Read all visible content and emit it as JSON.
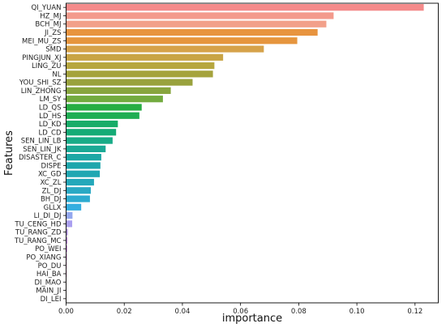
{
  "chart_data": {
    "type": "bar",
    "orientation": "horizontal",
    "xlabel": "importance",
    "ylabel": "Features",
    "xlim": [
      0,
      0.128
    ],
    "xticks": [
      "0.00",
      "0.02",
      "0.04",
      "0.06",
      "0.08",
      "0.10",
      "0.12"
    ],
    "grid": false,
    "categories": [
      "QI_YUAN",
      "HZ_MJ",
      "BCH_MJ",
      "JI_ZS",
      "MEI_MU_ZS",
      "SMD",
      "PINGJUN_XJ",
      "LING_ZU",
      "NL",
      "YOU_SHI_SZ",
      "LIN_ZHONG",
      "LM_SY",
      "LD_QS",
      "LD_HS",
      "LD_KD",
      "LD_CD",
      "SEN_LIN_LB",
      "SEN_LIN_JK",
      "DISASTER_C",
      "DISPE",
      "XC_GD",
      "XC_ZL",
      "ZL_DJ",
      "BH_DJ",
      "GLLX",
      "LI_DI_DJ",
      "TU_CENG_HD",
      "TU_RANG_ZD",
      "TU_RANG_MC",
      "PO_WEI",
      "PO_XIANG",
      "PO_DU",
      "HAI_BA",
      "DI_MAO",
      "MAIN_JI",
      "DI_LEI"
    ],
    "values": [
      0.123,
      0.092,
      0.0895,
      0.0865,
      0.0795,
      0.068,
      0.054,
      0.051,
      0.0505,
      0.0435,
      0.036,
      0.0333,
      0.026,
      0.0252,
      0.0178,
      0.0172,
      0.016,
      0.0136,
      0.0121,
      0.0118,
      0.0116,
      0.0096,
      0.0085,
      0.0082,
      0.0052,
      0.0022,
      0.0021,
      0.0006,
      0.0005,
      0.0004,
      0.0003,
      0.0002,
      0.0002,
      0.0001,
      0.0001,
      0.0001
    ],
    "colors": [
      "#f48a8a",
      "#f39a8c",
      "#f2a08a",
      "#e8943f",
      "#e6953e",
      "#d6a24a",
      "#c9a445",
      "#b7a73f",
      "#a5a33c",
      "#99a23d",
      "#88a53e",
      "#73ab3f",
      "#27ad43",
      "#1fae53",
      "#17ac68",
      "#15ab76",
      "#18ab87",
      "#1aa995",
      "#1ca7a5",
      "#1da6ac",
      "#20a7b2",
      "#24a8ba",
      "#2aa9c4",
      "#2eabd0",
      "#35aee0",
      "#93a7ee",
      "#aa9ff0",
      "#b89bf0",
      "#c596ee",
      "#d28fe8",
      "#de8ae0",
      "#e587d6",
      "#ed86c8",
      "#f188b8",
      "#f28aac",
      "#f38aa0"
    ]
  }
}
